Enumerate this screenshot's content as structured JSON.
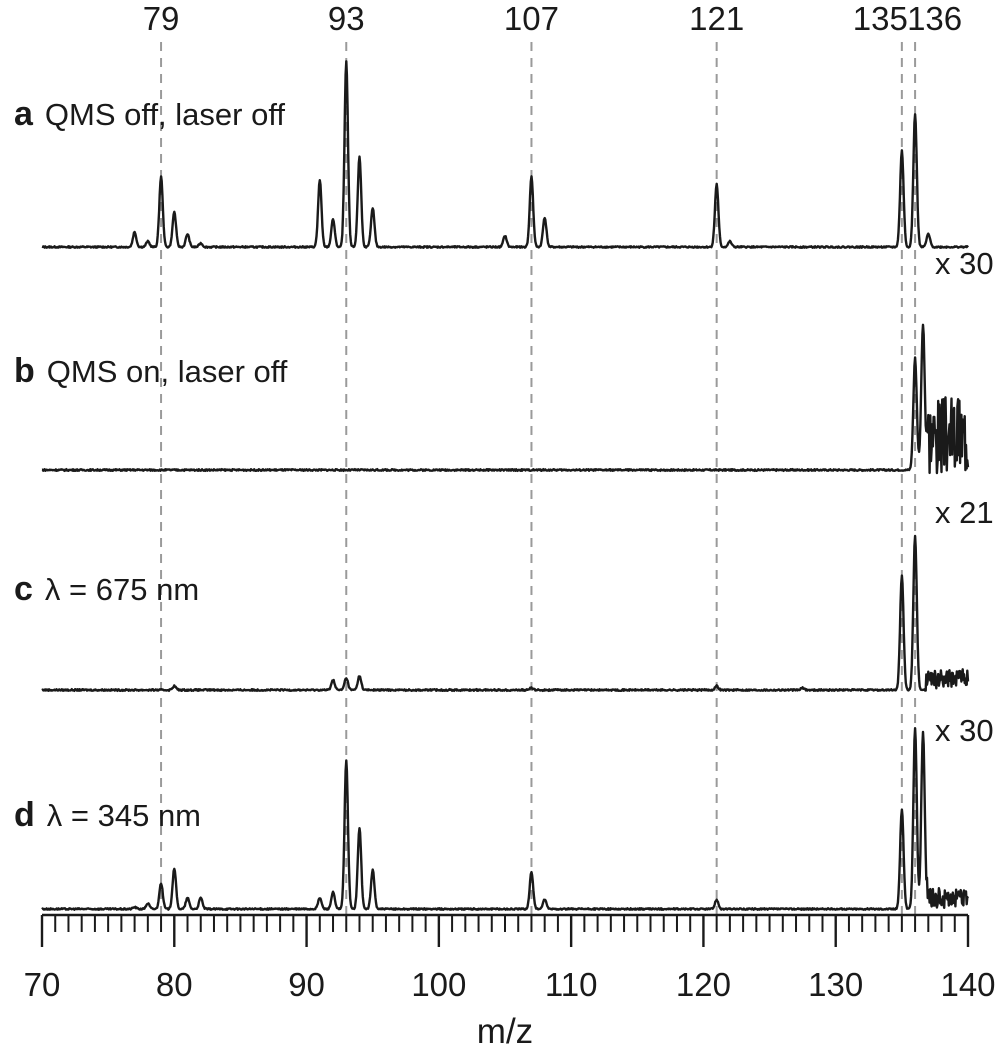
{
  "chart_data": {
    "type": "line",
    "xlabel": "m/z",
    "ylabel": "",
    "xlim": [
      70,
      140
    ],
    "x_ticks": [
      70,
      80,
      90,
      100,
      110,
      120,
      130,
      140
    ],
    "x_tick_labels": [
      "70",
      "80",
      "90",
      "100",
      "110",
      "120",
      "130",
      "140"
    ],
    "reference_lines": [
      79,
      93,
      107,
      121,
      135,
      136
    ],
    "reference_line_labels": [
      "79",
      "93",
      "107",
      "121",
      "135",
      "136"
    ],
    "grid": false,
    "line_color": "#1a1a1a",
    "reference_line_color": "#9a9a9a",
    "series": [
      {
        "letter": "a",
        "name": "QMS off, laser off",
        "scale_label": "",
        "peaks": [
          {
            "x": 77,
            "y": 0.08
          },
          {
            "x": 78,
            "y": 0.03
          },
          {
            "x": 79,
            "y": 0.38
          },
          {
            "x": 80,
            "y": 0.19
          },
          {
            "x": 81,
            "y": 0.07
          },
          {
            "x": 82,
            "y": 0.02
          },
          {
            "x": 91,
            "y": 0.36
          },
          {
            "x": 92,
            "y": 0.15
          },
          {
            "x": 93,
            "y": 1.0
          },
          {
            "x": 94,
            "y": 0.49
          },
          {
            "x": 95,
            "y": 0.21
          },
          {
            "x": 105,
            "y": 0.06
          },
          {
            "x": 107,
            "y": 0.38
          },
          {
            "x": 108,
            "y": 0.16
          },
          {
            "x": 121,
            "y": 0.34
          },
          {
            "x": 122,
            "y": 0.03
          },
          {
            "x": 135,
            "y": 0.52
          },
          {
            "x": 136,
            "y": 0.72
          },
          {
            "x": 137,
            "y": 0.07
          }
        ]
      },
      {
        "letter": "b",
        "name": "QMS on, laser off",
        "scale_label": "x 30",
        "peaks": [
          {
            "x": 136,
            "y": 0.56
          },
          {
            "x": 136.6,
            "y": 0.73
          }
        ]
      },
      {
        "letter": "c",
        "name": "λ = 675 nm",
        "scale_label": "x 21",
        "peaks": [
          {
            "x": 80,
            "y": 0.02
          },
          {
            "x": 92,
            "y": 0.05
          },
          {
            "x": 93,
            "y": 0.06
          },
          {
            "x": 94,
            "y": 0.07
          },
          {
            "x": 107,
            "y": 0.01
          },
          {
            "x": 121,
            "y": 0.02
          },
          {
            "x": 127.5,
            "y": 0.01
          },
          {
            "x": 135,
            "y": 0.57
          },
          {
            "x": 136,
            "y": 0.77
          }
        ]
      },
      {
        "letter": "d",
        "name": "λ = 345 nm",
        "scale_label": "x 30",
        "peaks": [
          {
            "x": 77,
            "y": 0.01
          },
          {
            "x": 78,
            "y": 0.03
          },
          {
            "x": 79,
            "y": 0.14
          },
          {
            "x": 80,
            "y": 0.22
          },
          {
            "x": 81,
            "y": 0.06
          },
          {
            "x": 82,
            "y": 0.06
          },
          {
            "x": 91,
            "y": 0.06
          },
          {
            "x": 92,
            "y": 0.09
          },
          {
            "x": 93,
            "y": 0.8
          },
          {
            "x": 94,
            "y": 0.44
          },
          {
            "x": 95,
            "y": 0.21
          },
          {
            "x": 107,
            "y": 0.2
          },
          {
            "x": 108,
            "y": 0.05
          },
          {
            "x": 121,
            "y": 0.05
          },
          {
            "x": 135,
            "y": 0.54
          },
          {
            "x": 136,
            "y": 0.98
          },
          {
            "x": 136.6,
            "y": 0.96
          }
        ]
      }
    ]
  }
}
